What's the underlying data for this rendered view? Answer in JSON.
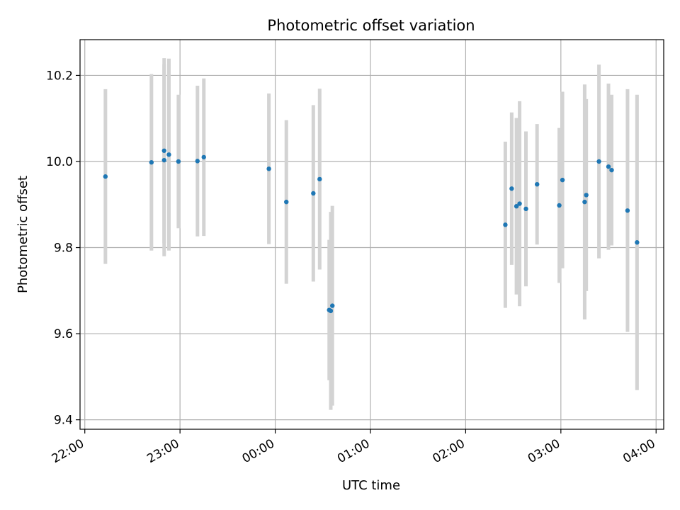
{
  "chart_data": {
    "type": "scatter",
    "title": "Photometric offset variation",
    "xlabel": "UTC time",
    "ylabel": "Photometric offset",
    "x_tick_labels": [
      "22:00",
      "23:00",
      "00:00",
      "01:00",
      "02:00",
      "03:00",
      "04:00"
    ],
    "x_tick_hours": [
      0,
      1,
      2,
      3,
      4,
      5,
      6
    ],
    "y_ticks": [
      9.4,
      9.6,
      9.8,
      10.0,
      10.2
    ],
    "y_tick_labels": [
      "9.4",
      "9.6",
      "9.8",
      "10.0",
      "10.2"
    ],
    "xlim_hours_since_2200": [
      -0.05,
      6.08
    ],
    "ylim": [
      9.378,
      10.283
    ],
    "grid": true,
    "legend": "none",
    "colors": {
      "marker": "#1f77b4",
      "errorbar": "#d3d3d3",
      "grid": "#b0b0b0",
      "axes": "#000000"
    },
    "points": [
      {
        "t": "22:13",
        "y": 9.965,
        "err": 0.203
      },
      {
        "t": "22:42",
        "y": 9.998,
        "err": 0.205
      },
      {
        "t": "22:50",
        "y": 10.003,
        "err": 0.223
      },
      {
        "t": "22:50",
        "y": 10.025,
        "err": 0.215
      },
      {
        "t": "22:53",
        "y": 10.016,
        "err": 0.223
      },
      {
        "t": "22:59",
        "y": 10.0,
        "err": 0.155
      },
      {
        "t": "23:11",
        "y": 10.001,
        "err": 0.175
      },
      {
        "t": "23:15",
        "y": 10.01,
        "err": 0.183
      },
      {
        "t": "23:56",
        "y": 9.983,
        "err": 0.175
      },
      {
        "t": "00:07",
        "y": 9.906,
        "err": 0.19
      },
      {
        "t": "00:24",
        "y": 9.926,
        "err": 0.205
      },
      {
        "t": "00:28",
        "y": 9.959,
        "err": 0.21
      },
      {
        "t": "00:34",
        "y": 9.655,
        "err": 0.163
      },
      {
        "t": "00:35",
        "y": 9.653,
        "err": 0.23
      },
      {
        "t": "00:36",
        "y": 9.665,
        "err": 0.232
      },
      {
        "t": "02:25",
        "y": 9.853,
        "err": 0.193
      },
      {
        "t": "02:29",
        "y": 9.937,
        "err": 0.177
      },
      {
        "t": "02:32",
        "y": 9.896,
        "err": 0.205
      },
      {
        "t": "02:34",
        "y": 9.902,
        "err": 0.238
      },
      {
        "t": "02:38",
        "y": 9.89,
        "err": 0.18
      },
      {
        "t": "02:45",
        "y": 9.947,
        "err": 0.14
      },
      {
        "t": "02:59",
        "y": 9.898,
        "err": 0.18
      },
      {
        "t": "03:01",
        "y": 9.957,
        "err": 0.205
      },
      {
        "t": "03:15",
        "y": 9.906,
        "err": 0.273
      },
      {
        "t": "03:16",
        "y": 9.922,
        "err": 0.223
      },
      {
        "t": "03:24",
        "y": 10.0,
        "err": 0.225
      },
      {
        "t": "03:30",
        "y": 9.988,
        "err": 0.193
      },
      {
        "t": "03:32",
        "y": 9.98,
        "err": 0.175
      },
      {
        "t": "03:42",
        "y": 9.886,
        "err": 0.282
      },
      {
        "t": "03:48",
        "y": 9.812,
        "err": 0.343
      }
    ]
  }
}
